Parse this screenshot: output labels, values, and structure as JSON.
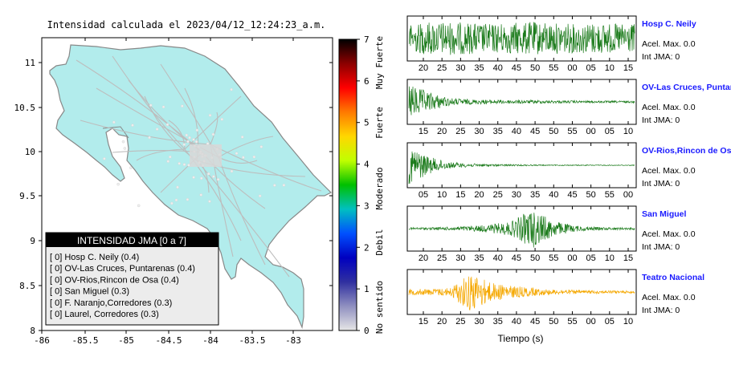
{
  "map": {
    "title": "Intensidad calculada el 2023/04/12_12:24:23_a.m.",
    "x_ticks": [
      "-86",
      "-85.5",
      "-85",
      "-84.5",
      "-84",
      "-83.5",
      "-83"
    ],
    "y_ticks": [
      "11",
      "10.5",
      "10",
      "9.5",
      "9",
      "8.5",
      "8"
    ],
    "colors": {
      "land": "#b2ecec",
      "border": "#888888",
      "roads": "#bdbdbd"
    }
  },
  "colorbar": {
    "ticks": [
      "7",
      "6",
      "5",
      "4",
      "3",
      "2",
      "1",
      "0"
    ],
    "categories": [
      "Muy Fuerte",
      "Fuerte",
      "Moderado",
      "Debil",
      "No sentido"
    ],
    "gradient": [
      "#000000",
      "#8b0000",
      "#ff0000",
      "#ff7a00",
      "#ffd700",
      "#c0ff00",
      "#00c000",
      "#00c0c0",
      "#0050ff",
      "#0000c0",
      "#3030a0",
      "#9090c0",
      "#e6e6e6"
    ]
  },
  "legend": {
    "header": "INTENSIDAD JMA [0 a 7]",
    "items": [
      "[ 0]  Hosp C. Neily (0.4)",
      "[ 0]  OV-Las Cruces, Puntarenas (0.4)",
      "[ 0]  OV-Rios,Rincon de Osa (0.4)",
      "[ 0]  San Miguel (0.3)",
      "[ 0]  F. Naranjo,Corredores (0.3)",
      "[ 0]  Laurel, Corredores (0.3)"
    ]
  },
  "traces": [
    {
      "station": "Hosp C. Neily",
      "acel": "Acel. Max. 0.0",
      "int": "Int JMA: 0",
      "color": "#1a7a1a",
      "ticks": [
        "20",
        "25",
        "30",
        "35",
        "40",
        "45",
        "50",
        "55",
        "00",
        "05",
        "10",
        "15"
      ],
      "envelope": [
        0.65,
        0.8,
        0.8,
        0.75,
        0.7,
        0.75,
        0.8,
        0.75,
        0.7,
        0.75,
        0.7,
        0.7
      ]
    },
    {
      "station": "OV-Las Cruces, Puntarenas",
      "acel": "Acel. Max. 0.0",
      "int": "Int JMA: 0",
      "color": "#1a7a1a",
      "ticks": [
        "15",
        "20",
        "25",
        "30",
        "35",
        "40",
        "45",
        "50",
        "55",
        "00",
        "05",
        "10"
      ],
      "envelope": [
        0.85,
        0.45,
        0.18,
        0.12,
        0.1,
        0.09,
        0.08,
        0.07,
        0.06,
        0.05,
        0.05,
        0.05
      ]
    },
    {
      "station": "OV-Rios,Rincon de Osa",
      "acel": "Acel. Max. 0.0",
      "int": "Int JMA: 0",
      "color": "#1a7a1a",
      "ticks": [
        "05",
        "10",
        "15",
        "20",
        "25",
        "30",
        "35",
        "40",
        "45",
        "50",
        "55",
        "00"
      ],
      "envelope": [
        0.95,
        0.4,
        0.15,
        0.08,
        0.05,
        0.04,
        0.03,
        0.02,
        0.02,
        0.02,
        0.02,
        0.02
      ]
    },
    {
      "station": "San Miguel",
      "acel": "Acel. Max. 0.0",
      "int": "Int JMA: 0",
      "color": "#1a7a1a",
      "ticks": [
        "20",
        "25",
        "30",
        "35",
        "40",
        "45",
        "50",
        "55",
        "00",
        "05",
        "10",
        "15"
      ],
      "envelope": [
        0.05,
        0.06,
        0.08,
        0.12,
        0.2,
        0.35,
        0.95,
        0.4,
        0.15,
        0.08,
        0.06,
        0.05
      ]
    },
    {
      "station": "Teatro Nacional",
      "acel": "Acel. Max. 0.0",
      "int": "Int JMA: 0",
      "color": "#f5a800",
      "ticks": [
        "15",
        "20",
        "25",
        "30",
        "35",
        "40",
        "45",
        "50",
        "55",
        "00",
        "05",
        "10"
      ],
      "envelope": [
        0.15,
        0.15,
        0.2,
        0.95,
        0.45,
        0.3,
        0.2,
        0.12,
        0.1,
        0.08,
        0.07,
        0.06
      ]
    }
  ],
  "xlabel": "Tiempo (s)"
}
